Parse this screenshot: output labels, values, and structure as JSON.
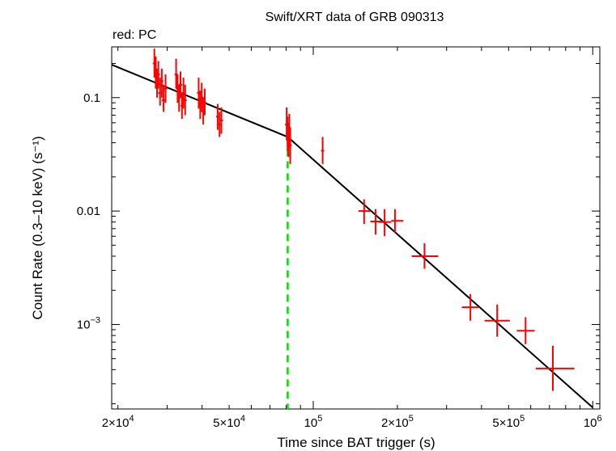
{
  "chart_data": {
    "type": "scatter",
    "title": "Swift/XRT data of GRB 090313",
    "subtitle": "red: PC",
    "xlabel": "Time since BAT trigger (s)",
    "ylabel": "Count Rate (0.3–10 keV) (s⁻¹)",
    "xscale": "log",
    "yscale": "log",
    "xlim": [
      19000,
      1060000
    ],
    "ylim": [
      0.00018,
      0.28
    ],
    "x_ticks": [
      {
        "value": 20000,
        "mant": "2×10",
        "exp": "4"
      },
      {
        "value": 50000,
        "mant": "5×10",
        "exp": "4"
      },
      {
        "value": 100000,
        "mant": "10",
        "exp": "5"
      },
      {
        "value": 200000,
        "mant": "2×10",
        "exp": "5"
      },
      {
        "value": 500000,
        "mant": "5×10",
        "exp": "5"
      },
      {
        "value": 1000000,
        "mant": "10",
        "exp": "6"
      }
    ],
    "y_ticks": [
      {
        "value": 0.1,
        "mant": "0.1",
        "exp": ""
      },
      {
        "value": 0.01,
        "mant": "0.01",
        "exp": ""
      },
      {
        "value": 0.001,
        "mant": "10",
        "exp": "−3"
      }
    ],
    "series": [
      {
        "name": "PC",
        "color": "#ff0000",
        "points": [
          {
            "x": 27000,
            "y": 0.2,
            "ylo": 0.15,
            "yhi": 0.27
          },
          {
            "x": 27300,
            "y": 0.17,
            "ylo": 0.12,
            "yhi": 0.23
          },
          {
            "x": 27600,
            "y": 0.13,
            "ylo": 0.1,
            "yhi": 0.18
          },
          {
            "x": 27900,
            "y": 0.16,
            "ylo": 0.12,
            "yhi": 0.21
          },
          {
            "x": 28300,
            "y": 0.11,
            "ylo": 0.085,
            "yhi": 0.15
          },
          {
            "x": 28700,
            "y": 0.14,
            "ylo": 0.1,
            "yhi": 0.18
          },
          {
            "x": 29100,
            "y": 0.095,
            "ylo": 0.075,
            "yhi": 0.13
          },
          {
            "x": 29600,
            "y": 0.12,
            "ylo": 0.09,
            "yhi": 0.16
          },
          {
            "x": 32300,
            "y": 0.16,
            "ylo": 0.12,
            "yhi": 0.22
          },
          {
            "x": 32700,
            "y": 0.12,
            "ylo": 0.09,
            "yhi": 0.16
          },
          {
            "x": 33100,
            "y": 0.1,
            "ylo": 0.075,
            "yhi": 0.13
          },
          {
            "x": 33500,
            "y": 0.13,
            "ylo": 0.1,
            "yhi": 0.17
          },
          {
            "x": 33900,
            "y": 0.085,
            "ylo": 0.065,
            "yhi": 0.11
          },
          {
            "x": 34300,
            "y": 0.11,
            "ylo": 0.08,
            "yhi": 0.15
          },
          {
            "x": 34800,
            "y": 0.095,
            "ylo": 0.07,
            "yhi": 0.13
          },
          {
            "x": 38900,
            "y": 0.11,
            "ylo": 0.08,
            "yhi": 0.15
          },
          {
            "x": 39400,
            "y": 0.085,
            "ylo": 0.065,
            "yhi": 0.115
          },
          {
            "x": 39900,
            "y": 0.1,
            "ylo": 0.075,
            "yhi": 0.135
          },
          {
            "x": 40400,
            "y": 0.075,
            "ylo": 0.058,
            "yhi": 0.1
          },
          {
            "x": 40900,
            "y": 0.09,
            "ylo": 0.07,
            "yhi": 0.12
          },
          {
            "x": 45500,
            "y": 0.068,
            "ylo": 0.052,
            "yhi": 0.088
          },
          {
            "x": 46200,
            "y": 0.058,
            "ylo": 0.045,
            "yhi": 0.075
          },
          {
            "x": 46900,
            "y": 0.063,
            "ylo": 0.048,
            "yhi": 0.082
          },
          {
            "x": 80300,
            "y": 0.058,
            "ylo": 0.042,
            "yhi": 0.082
          },
          {
            "x": 80900,
            "y": 0.048,
            "ylo": 0.034,
            "yhi": 0.068
          },
          {
            "x": 81500,
            "y": 0.042,
            "ylo": 0.03,
            "yhi": 0.06
          },
          {
            "x": 82100,
            "y": 0.052,
            "ylo": 0.036,
            "yhi": 0.072
          },
          {
            "x": 82700,
            "y": 0.038,
            "ylo": 0.026,
            "yhi": 0.055
          },
          {
            "x": 108000,
            "y": 0.034,
            "ylo": 0.026,
            "yhi": 0.045
          },
          {
            "x": 152000,
            "y": 0.01,
            "ylo": 0.0077,
            "yhi": 0.0127,
            "xlo": 145000,
            "xhi": 160000
          },
          {
            "x": 167000,
            "y": 0.0081,
            "ylo": 0.0062,
            "yhi": 0.0104,
            "xlo": 160000,
            "xhi": 178000
          },
          {
            "x": 180000,
            "y": 0.008,
            "ylo": 0.006,
            "yhi": 0.0104,
            "xlo": 172000,
            "xhi": 190000
          },
          {
            "x": 196000,
            "y": 0.0082,
            "ylo": 0.0064,
            "yhi": 0.0104,
            "xlo": 190000,
            "xhi": 210000
          },
          {
            "x": 250000,
            "y": 0.004,
            "ylo": 0.0031,
            "yhi": 0.0052,
            "xlo": 225000,
            "xhi": 280000
          },
          {
            "x": 365000,
            "y": 0.00142,
            "ylo": 0.00108,
            "yhi": 0.00185,
            "xlo": 340000,
            "xhi": 390000
          },
          {
            "x": 455000,
            "y": 0.00108,
            "ylo": 0.00078,
            "yhi": 0.0015,
            "xlo": 410000,
            "xhi": 505000
          },
          {
            "x": 575000,
            "y": 0.00088,
            "ylo": 0.00067,
            "yhi": 0.00116,
            "xlo": 535000,
            "xhi": 620000
          },
          {
            "x": 720000,
            "y": 0.00041,
            "ylo": 0.00026,
            "yhi": 0.00065,
            "xlo": 625000,
            "xhi": 860000
          }
        ]
      }
    ],
    "model": {
      "name": "broken power law",
      "color": "#000000",
      "points": [
        [
          19000,
          0.195
        ],
        [
          81000,
          0.045
        ],
        [
          1000000,
          0.000185
        ]
      ]
    },
    "break_marker": {
      "x": 81000,
      "color": "#00dd00",
      "style": "dashed"
    }
  }
}
